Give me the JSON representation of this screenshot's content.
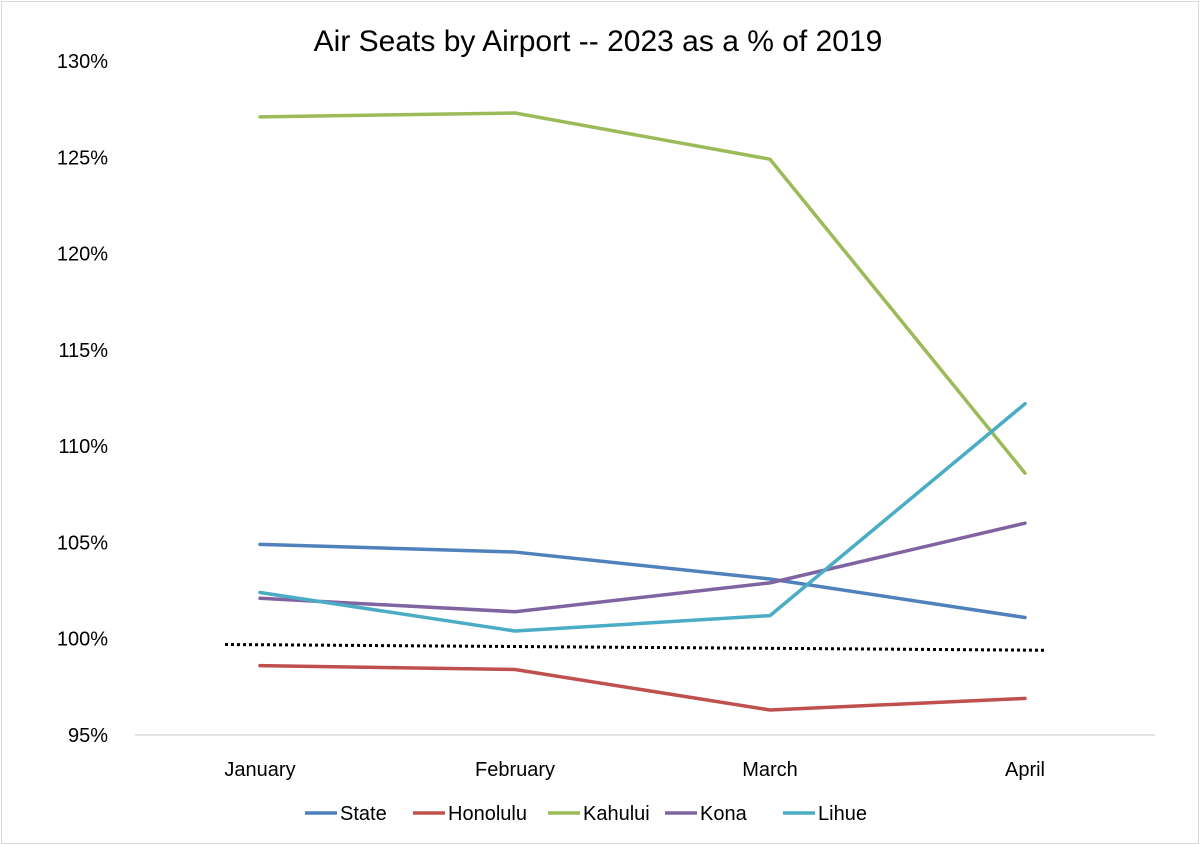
{
  "chart_data": {
    "type": "line",
    "title": "Air Seats by Airport -- 2023 as a % of 2019",
    "xlabel": "",
    "ylabel": "",
    "categories": [
      "January",
      "February",
      "March",
      "April"
    ],
    "ylim": [
      95,
      130
    ],
    "yticks": [
      95,
      100,
      105,
      110,
      115,
      120,
      125,
      130
    ],
    "ytick_labels": [
      "95%",
      "100%",
      "105%",
      "110%",
      "115%",
      "120%",
      "125%",
      "130%"
    ],
    "grid": false,
    "legend_position": "bottom",
    "series": [
      {
        "name": "State",
        "color": "#4f81bd",
        "values": [
          104.9,
          104.5,
          103.1,
          101.1
        ]
      },
      {
        "name": "Honolulu",
        "color": "#c0504d",
        "values": [
          98.6,
          98.4,
          96.3,
          96.9
        ]
      },
      {
        "name": "Kahului",
        "color": "#9bbb59",
        "values": [
          127.1,
          127.3,
          124.9,
          108.6
        ]
      },
      {
        "name": "Kona",
        "color": "#8064a2",
        "values": [
          102.1,
          101.4,
          102.9,
          106.0
        ]
      },
      {
        "name": "Lihue",
        "color": "#4bacc6",
        "values": [
          102.4,
          100.4,
          101.2,
          112.2
        ]
      }
    ],
    "reference_line": {
      "style": "dotted",
      "color": "#000000",
      "start_value": 99.7,
      "end_value": 99.4
    }
  }
}
